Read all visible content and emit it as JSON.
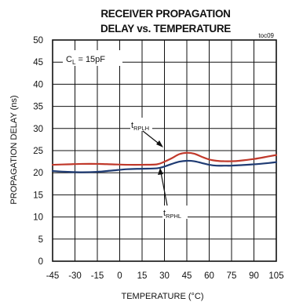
{
  "chart_data": {
    "type": "line",
    "title": [
      "RECEIVER PROPAGATION",
      "DELAY vs. TEMPERATURE"
    ],
    "tag": "toc09",
    "xlabel": "TEMPERATURE (°C)",
    "ylabel": "PROPAGATION DELAY (ns)",
    "xlim": [
      -45,
      105
    ],
    "ylim": [
      0,
      50
    ],
    "xticks": [
      -45,
      -30,
      -15,
      0,
      15,
      30,
      45,
      60,
      75,
      90,
      105
    ],
    "yticks": [
      0,
      5,
      10,
      15,
      20,
      25,
      30,
      35,
      40,
      45,
      50
    ],
    "grid": true,
    "legend_box": {
      "label": "C",
      "subscript": "L",
      "text": " = 15pF"
    },
    "series": [
      {
        "label_main": "t",
        "label_sub": "RPLH",
        "color": "#c0392b",
        "x": [
          -45,
          -35,
          -25,
          -15,
          -5,
          5,
          15,
          25,
          30,
          35,
          40,
          45,
          50,
          55,
          60,
          65,
          70,
          75,
          80,
          90,
          100,
          105
        ],
        "y": [
          21.8,
          21.9,
          22.0,
          22.0,
          21.9,
          21.8,
          21.8,
          21.9,
          22.5,
          23.3,
          24.2,
          24.5,
          24.3,
          23.6,
          23.0,
          22.7,
          22.6,
          22.6,
          22.7,
          23.1,
          23.7,
          24.0
        ]
      },
      {
        "label_main": "t",
        "label_sub": "RPHL",
        "color": "#1f3b73",
        "x": [
          -45,
          -35,
          -25,
          -15,
          -5,
          5,
          15,
          25,
          30,
          35,
          40,
          45,
          50,
          55,
          60,
          65,
          70,
          75,
          80,
          90,
          100,
          105
        ],
        "y": [
          20.4,
          20.2,
          20.1,
          20.2,
          20.5,
          20.8,
          20.9,
          21.0,
          21.4,
          22.0,
          22.5,
          22.7,
          22.6,
          22.2,
          21.8,
          21.6,
          21.6,
          21.6,
          21.7,
          21.9,
          22.2,
          22.4
        ]
      }
    ]
  }
}
